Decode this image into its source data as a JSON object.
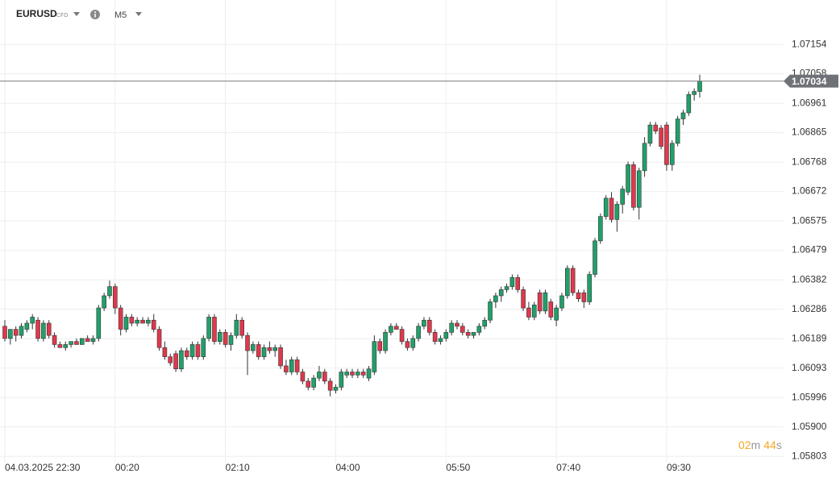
{
  "chart_data": {
    "type": "candlestick",
    "symbol": "EURUSD",
    "instrument_type": "CFD",
    "timeframe": "M5",
    "up_color": "#21a06a",
    "down_color": "#e0384c",
    "grid": true,
    "ylim": [
      1.0578,
      1.073
    ],
    "yticks": [
      1.07154,
      1.07058,
      1.06961,
      1.06865,
      1.06768,
      1.06672,
      1.06575,
      1.06479,
      1.06382,
      1.06286,
      1.06189,
      1.06093,
      1.05996,
      {
        "value": 1.059,
        "label": "1.05900"
      },
      1.05803
    ],
    "last_price": 1.07034,
    "countdown": {
      "minutes": "02",
      "minutes_unit": "m",
      "seconds": "44",
      "seconds_unit": "s"
    },
    "categories": [
      "04.03.2025 22:30",
      null,
      null,
      null,
      null,
      null,
      null,
      null,
      null,
      null,
      null,
      null,
      null,
      null,
      null,
      null,
      null,
      null,
      null,
      null,
      "00:20",
      null,
      null,
      null,
      null,
      null,
      null,
      null,
      null,
      null,
      null,
      null,
      null,
      null,
      null,
      null,
      null,
      null,
      null,
      null,
      "02:10",
      null,
      null,
      null,
      null,
      null,
      null,
      null,
      null,
      null,
      null,
      null,
      null,
      null,
      null,
      null,
      null,
      null,
      null,
      null,
      "04:00",
      null,
      null,
      null,
      null,
      null,
      null,
      null,
      null,
      null,
      null,
      null,
      null,
      null,
      null,
      null,
      null,
      null,
      null,
      null,
      "05:50",
      null,
      null,
      null,
      null,
      null,
      null,
      null,
      null,
      null,
      null,
      null,
      null,
      null,
      null,
      null,
      null,
      null,
      null,
      null,
      "07:40",
      null,
      null,
      null,
      null,
      null,
      null,
      null,
      null,
      null,
      null,
      null,
      null,
      null,
      null,
      null,
      null,
      null,
      null,
      null,
      "09:30",
      null,
      null,
      null,
      null,
      null,
      null
    ],
    "open": [
      1.0623,
      1.0619,
      1.0622,
      1.062,
      1.0622,
      1.0624,
      1.0625,
      1.0619,
      1.0624,
      1.062,
      1.0617,
      1.0616,
      1.0617,
      1.0618,
      1.0617,
      1.0619,
      1.0618,
      1.0619,
      1.0629,
      1.0633,
      1.0636,
      1.0629,
      1.0622,
      1.0626,
      1.0624,
      1.0625,
      1.0624,
      1.0625,
      1.0622,
      1.0616,
      1.0613,
      1.0614,
      1.0609,
      1.0615,
      1.0613,
      1.0617,
      1.0613,
      1.0619,
      1.0626,
      1.0618,
      1.0621,
      1.0617,
      1.062,
      1.0625,
      1.062,
      1.0615,
      1.0617,
      1.0613,
      1.0616,
      1.0615,
      1.0616,
      1.061,
      1.0608,
      1.0612,
      1.0608,
      1.0605,
      1.0603,
      1.0606,
      1.0608,
      1.0605,
      1.0602,
      1.0603,
      1.0607,
      1.0608,
      1.0607,
      1.0608,
      1.0606,
      1.0608,
      1.0618,
      1.0615,
      1.0621,
      1.0623,
      1.0622,
      1.0618,
      1.0616,
      1.0619,
      1.0623,
      1.0625,
      1.0621,
      1.0618,
      1.0619,
      1.0621,
      1.0624,
      1.0623,
      1.0621,
      1.062,
      1.0621,
      1.0623,
      1.0625,
      1.0631,
      1.0633,
      1.0635,
      1.0636,
      1.0639,
      1.0635,
      1.0629,
      1.0626,
      1.0634,
      1.0628,
      1.0631,
      1.0625,
      1.0629,
      1.0633,
      1.0642,
      1.0634,
      1.0634,
      1.0631,
      1.064,
      1.0651,
      1.0659,
      1.0665,
      1.0658,
      1.0663,
      1.0667,
      1.0676,
      1.0662,
      1.0674,
      1.0683,
      1.0689,
      1.0688,
      1.0689,
      1.0676,
      1.0683,
      1.0691,
      1.0693,
      1.0699,
      1.07
    ],
    "high": [
      1.0625,
      1.0622,
      1.0623,
      1.0624,
      1.0625,
      1.0627,
      1.0626,
      1.0625,
      1.0625,
      1.0621,
      1.0618,
      1.0618,
      1.0618,
      1.0619,
      1.0619,
      1.062,
      1.062,
      1.063,
      1.0634,
      1.0638,
      1.0637,
      1.063,
      1.0627,
      1.0627,
      1.0626,
      1.0626,
      1.0626,
      1.0627,
      1.0623,
      1.0618,
      1.0614,
      1.0615,
      1.0616,
      1.0616,
      1.0618,
      1.0618,
      1.062,
      1.0627,
      1.0627,
      1.0622,
      1.0622,
      1.0621,
      1.0627,
      1.0626,
      1.0621,
      1.0618,
      1.0618,
      1.0617,
      1.0618,
      1.0617,
      1.0617,
      1.0612,
      1.0613,
      1.0613,
      1.0609,
      1.0606,
      1.0607,
      1.061,
      1.0609,
      1.0606,
      1.0604,
      1.0609,
      1.0609,
      1.0609,
      1.0609,
      1.0609,
      1.061,
      1.062,
      1.0619,
      1.0622,
      1.0624,
      1.0624,
      1.0623,
      1.0619,
      1.062,
      1.0624,
      1.0626,
      1.0626,
      1.0622,
      1.062,
      1.0622,
      1.0625,
      1.0625,
      1.0624,
      1.0622,
      1.0621,
      1.0624,
      1.0626,
      1.0632,
      1.0634,
      1.0636,
      1.0637,
      1.064,
      1.064,
      1.0636,
      1.0631,
      1.0631,
      1.0635,
      1.0635,
      1.0632,
      1.063,
      1.0634,
      1.0643,
      1.0643,
      1.0635,
      1.0635,
      1.0641,
      1.0652,
      1.066,
      1.0666,
      1.0667,
      1.0664,
      1.0669,
      1.0677,
      1.0677,
      1.0675,
      1.0685,
      1.069,
      1.069,
      1.0689,
      1.069,
      1.0684,
      1.0692,
      1.0694,
      1.07,
      1.0701,
      1.07055
    ],
    "low": [
      1.0618,
      1.0617,
      1.0618,
      1.0619,
      1.0621,
      1.0622,
      1.0618,
      1.0618,
      1.0619,
      1.0616,
      1.0616,
      1.0615,
      1.0616,
      1.0617,
      1.0617,
      1.0618,
      1.0617,
      1.0618,
      1.0628,
      1.0632,
      1.0627,
      1.062,
      1.0621,
      1.0623,
      1.0623,
      1.0624,
      1.0623,
      1.0621,
      1.0615,
      1.0612,
      1.061,
      1.0608,
      1.0608,
      1.0612,
      1.0612,
      1.0612,
      1.0612,
      1.0618,
      1.0617,
      1.0617,
      1.0616,
      1.0615,
      1.0619,
      1.0619,
      1.0607,
      1.0614,
      1.0612,
      1.0612,
      1.0614,
      1.0613,
      1.0609,
      1.0607,
      1.0607,
      1.0607,
      1.0604,
      1.0602,
      1.0602,
      1.0605,
      1.0604,
      1.06,
      1.0601,
      1.0602,
      1.0606,
      1.0606,
      1.0606,
      1.0606,
      1.0605,
      1.0607,
      1.0614,
      1.0614,
      1.062,
      1.0622,
      1.0617,
      1.0615,
      1.0615,
      1.0618,
      1.0622,
      1.062,
      1.0617,
      1.0617,
      1.0618,
      1.062,
      1.0622,
      1.062,
      1.0619,
      1.0619,
      1.062,
      1.0622,
      1.0624,
      1.0629,
      1.0631,
      1.0634,
      1.0635,
      1.0634,
      1.0628,
      1.0625,
      1.0625,
      1.0627,
      1.0627,
      1.0625,
      1.0623,
      1.0628,
      1.0632,
      1.0633,
      1.0631,
      1.0629,
      1.063,
      1.0639,
      1.065,
      1.0658,
      1.0657,
      1.0654,
      1.066,
      1.0666,
      1.0661,
      1.0658,
      1.0672,
      1.0682,
      1.0686,
      1.0681,
      1.0674,
      1.0674,
      1.0682,
      1.0689,
      1.0692,
      1.0697,
      1.0698
    ],
    "close": [
      1.0619,
      1.0622,
      1.062,
      1.0623,
      1.0624,
      1.0626,
      1.0619,
      1.0624,
      1.062,
      1.0617,
      1.0616,
      1.0617,
      1.0618,
      1.0617,
      1.0619,
      1.0618,
      1.0619,
      1.0629,
      1.0633,
      1.0636,
      1.0629,
      1.0622,
      1.0626,
      1.0624,
      1.0625,
      1.0624,
      1.0625,
      1.0622,
      1.0616,
      1.0613,
      1.0611,
      1.0609,
      1.0615,
      1.0613,
      1.0617,
      1.0613,
      1.0619,
      1.0626,
      1.0618,
      1.0621,
      1.0617,
      1.062,
      1.0625,
      1.062,
      1.0615,
      1.0617,
      1.0613,
      1.0616,
      1.0615,
      1.0616,
      1.061,
      1.0608,
      1.0612,
      1.0608,
      1.0605,
      1.0603,
      1.0606,
      1.0608,
      1.0605,
      1.0602,
      1.0603,
      1.0608,
      1.0608,
      1.0607,
      1.0608,
      1.0607,
      1.0609,
      1.0618,
      1.0615,
      1.0621,
      1.0623,
      1.0622,
      1.0618,
      1.0616,
      1.0619,
      1.0623,
      1.0625,
      1.0621,
      1.0618,
      1.0619,
      1.0621,
      1.0624,
      1.0623,
      1.0621,
      1.062,
      1.0621,
      1.0623,
      1.0625,
      1.0631,
      1.0633,
      1.0635,
      1.0636,
      1.0639,
      1.0635,
      1.0629,
      1.0626,
      1.063,
      1.0628,
      1.0634,
      1.0626,
      1.0629,
      1.0633,
      1.0642,
      1.0634,
      1.0632,
      1.0631,
      1.064,
      1.0651,
      1.0659,
      1.0665,
      1.0658,
      1.0663,
      1.0668,
      1.0676,
      1.0662,
      1.0674,
      1.0683,
      1.0689,
      1.0687,
      1.0682,
      1.0676,
      1.0683,
      1.0691,
      1.0693,
      1.0699,
      1.07,
      1.07034
    ]
  }
}
